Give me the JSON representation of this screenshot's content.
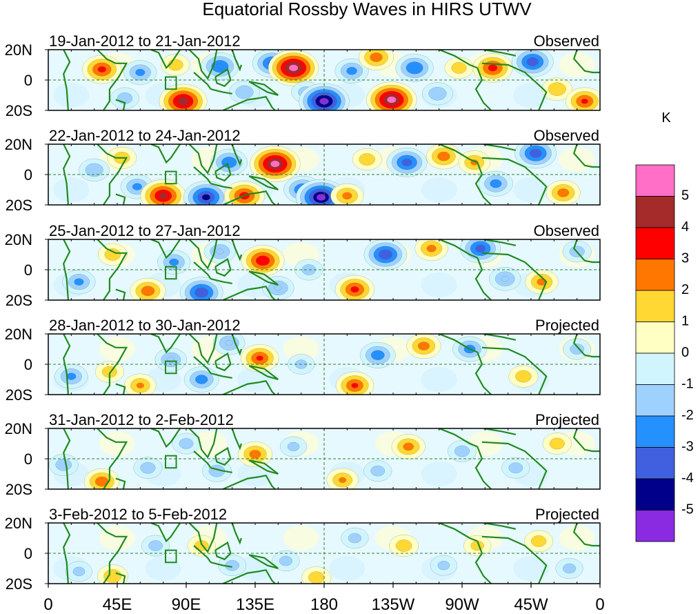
{
  "chart_data": {
    "type": "heatmap",
    "title": "Equatorial Rossby Waves in HIRS UTWV",
    "units_label": "K",
    "x_ticks": [
      "0",
      "45E",
      "90E",
      "135E",
      "180",
      "135W",
      "90W",
      "45W",
      "0"
    ],
    "x_tick_lons": [
      0,
      45,
      90,
      135,
      180,
      225,
      270,
      315,
      360
    ],
    "y_ticks": [
      "20N",
      "0",
      "20S"
    ],
    "y_tick_lats": [
      20,
      0,
      -20
    ],
    "xlim": [
      0,
      360
    ],
    "ylim": [
      -20,
      20
    ],
    "colorbar": {
      "labels": [
        "5",
        "4",
        "3",
        "2",
        "1",
        "0",
        "-1",
        "-2",
        "-3",
        "-4",
        "-5"
      ],
      "levels": [
        5,
        4,
        3,
        2,
        1,
        0,
        -1,
        -2,
        -3,
        -4,
        -5
      ],
      "colors": [
        "#ff6ec7",
        "#a52a2a",
        "#ff0000",
        "#ff7700",
        "#ffd833",
        "#ffffc4",
        "#d0f5ff",
        "#9fd1ff",
        "#2590ff",
        "#4060e0",
        "#00008b",
        "#8a2be2"
      ]
    },
    "panels": [
      {
        "date_range": "19-Jan-2012 to 21-Jan-2012",
        "kind": "Observed",
        "anomalies": [
          {
            "lon": 35,
            "lat": 7,
            "value": 3.2
          },
          {
            "lon": 60,
            "lat": 5,
            "value": -2.2
          },
          {
            "lon": 50,
            "lat": -12,
            "value": -1.5
          },
          {
            "lon": 83,
            "lat": 10,
            "value": 1.5
          },
          {
            "lon": 88,
            "lat": -14,
            "value": 4.6
          },
          {
            "lon": 112,
            "lat": 9,
            "value": -3.0
          },
          {
            "lon": 128,
            "lat": -8,
            "value": -1.8
          },
          {
            "lon": 146,
            "lat": 11,
            "value": -3.2
          },
          {
            "lon": 160,
            "lat": 8,
            "value": 5.5
          },
          {
            "lon": 168,
            "lat": -8,
            "value": -1.5
          },
          {
            "lon": 180,
            "lat": -14,
            "value": -5.5
          },
          {
            "lon": 198,
            "lat": 6,
            "value": -2.3
          },
          {
            "lon": 214,
            "lat": 15,
            "value": 2.5
          },
          {
            "lon": 224,
            "lat": -13,
            "value": 5.2
          },
          {
            "lon": 239,
            "lat": 8,
            "value": -3.0
          },
          {
            "lon": 254,
            "lat": -9,
            "value": -1.8
          },
          {
            "lon": 268,
            "lat": 8,
            "value": 1.5
          },
          {
            "lon": 290,
            "lat": 8,
            "value": 3.3
          },
          {
            "lon": 316,
            "lat": 12,
            "value": -3.6
          },
          {
            "lon": 332,
            "lat": -6,
            "value": 1.8
          },
          {
            "lon": 350,
            "lat": -14,
            "value": 3.0
          }
        ]
      },
      {
        "date_range": "22-Jan-2012 to 24-Jan-2012",
        "kind": "Observed",
        "anomalies": [
          {
            "lon": 30,
            "lat": 3,
            "value": -1.8
          },
          {
            "lon": 48,
            "lat": 11,
            "value": 1.6
          },
          {
            "lon": 58,
            "lat": -8,
            "value": -2.2
          },
          {
            "lon": 75,
            "lat": -14,
            "value": 4.2
          },
          {
            "lon": 103,
            "lat": -15,
            "value": -4.2
          },
          {
            "lon": 118,
            "lat": 8,
            "value": -2.8
          },
          {
            "lon": 128,
            "lat": -14,
            "value": 3.4
          },
          {
            "lon": 148,
            "lat": 7,
            "value": 5.2
          },
          {
            "lon": 166,
            "lat": -10,
            "value": -3.0
          },
          {
            "lon": 178,
            "lat": -15,
            "value": -5.2
          },
          {
            "lon": 195,
            "lat": -14,
            "value": 2.2
          },
          {
            "lon": 208,
            "lat": 10,
            "value": 1.6
          },
          {
            "lon": 234,
            "lat": 8,
            "value": -3.4
          },
          {
            "lon": 258,
            "lat": 12,
            "value": 2.5
          },
          {
            "lon": 278,
            "lat": 8,
            "value": 2.0
          },
          {
            "lon": 292,
            "lat": -6,
            "value": -2.4
          },
          {
            "lon": 318,
            "lat": 14,
            "value": -3.6
          },
          {
            "lon": 336,
            "lat": -12,
            "value": 2.4
          }
        ]
      },
      {
        "date_range": "25-Jan-2012 to 27-Jan-2012",
        "kind": "Observed",
        "anomalies": [
          {
            "lon": 20,
            "lat": -8,
            "value": -2.2
          },
          {
            "lon": 42,
            "lat": 10,
            "value": 1.6
          },
          {
            "lon": 65,
            "lat": -14,
            "value": 2.6
          },
          {
            "lon": 82,
            "lat": 5,
            "value": -2.2
          },
          {
            "lon": 100,
            "lat": -15,
            "value": -3.8
          },
          {
            "lon": 112,
            "lat": 12,
            "value": -2.0
          },
          {
            "lon": 140,
            "lat": 6,
            "value": 3.8
          },
          {
            "lon": 150,
            "lat": -12,
            "value": -2.0
          },
          {
            "lon": 170,
            "lat": 0,
            "value": -1.4
          },
          {
            "lon": 200,
            "lat": -13,
            "value": 3.2
          },
          {
            "lon": 220,
            "lat": 10,
            "value": -3.8
          },
          {
            "lon": 250,
            "lat": 14,
            "value": 2.2
          },
          {
            "lon": 282,
            "lat": 14,
            "value": -3.4
          },
          {
            "lon": 298,
            "lat": -6,
            "value": -2.0
          },
          {
            "lon": 322,
            "lat": -8,
            "value": 2.2
          },
          {
            "lon": 345,
            "lat": 12,
            "value": -1.5
          }
        ]
      },
      {
        "date_range": "28-Jan-2012 to 30-Jan-2012",
        "kind": "Projected",
        "anomalies": [
          {
            "lon": 15,
            "lat": -8,
            "value": -2.2
          },
          {
            "lon": 40,
            "lat": -5,
            "value": 1.5
          },
          {
            "lon": 60,
            "lat": -14,
            "value": 2.0
          },
          {
            "lon": 80,
            "lat": 3,
            "value": -2.0
          },
          {
            "lon": 100,
            "lat": -10,
            "value": -2.5
          },
          {
            "lon": 138,
            "lat": 4,
            "value": 3.0
          },
          {
            "lon": 118,
            "lat": 14,
            "value": -2.0
          },
          {
            "lon": 165,
            "lat": 0,
            "value": -1.2
          },
          {
            "lon": 200,
            "lat": -14,
            "value": 3.0
          },
          {
            "lon": 215,
            "lat": 6,
            "value": -2.6
          },
          {
            "lon": 245,
            "lat": 12,
            "value": 2.4
          },
          {
            "lon": 275,
            "lat": 10,
            "value": -2.4
          },
          {
            "lon": 310,
            "lat": -8,
            "value": 1.6
          },
          {
            "lon": 345,
            "lat": 10,
            "value": -1.4
          }
        ]
      },
      {
        "date_range": "31-Jan-2012 to 2-Feb-2012",
        "kind": "Projected",
        "anomalies": [
          {
            "lon": 10,
            "lat": -4,
            "value": -1.6
          },
          {
            "lon": 35,
            "lat": -15,
            "value": 2.6
          },
          {
            "lon": 65,
            "lat": -6,
            "value": -1.5
          },
          {
            "lon": 90,
            "lat": 10,
            "value": -1.4
          },
          {
            "lon": 110,
            "lat": -8,
            "value": -1.6
          },
          {
            "lon": 135,
            "lat": 3,
            "value": 2.4
          },
          {
            "lon": 160,
            "lat": 8,
            "value": -1.2
          },
          {
            "lon": 192,
            "lat": -14,
            "value": 2.0
          },
          {
            "lon": 215,
            "lat": -8,
            "value": -1.4
          },
          {
            "lon": 235,
            "lat": 8,
            "value": 2.3
          },
          {
            "lon": 270,
            "lat": 5,
            "value": -1.5
          },
          {
            "lon": 305,
            "lat": -6,
            "value": -1.4
          },
          {
            "lon": 332,
            "lat": 10,
            "value": 1.5
          }
        ]
      },
      {
        "date_range": "3-Feb-2012 to 5-Feb-2012",
        "kind": "Projected",
        "anomalies": [
          {
            "lon": 20,
            "lat": -12,
            "value": -1.2
          },
          {
            "lon": 42,
            "lat": -15,
            "value": 1.8
          },
          {
            "lon": 70,
            "lat": 5,
            "value": -1.4
          },
          {
            "lon": 100,
            "lat": 5,
            "value": 1.4
          },
          {
            "lon": 120,
            "lat": -8,
            "value": -1.4
          },
          {
            "lon": 155,
            "lat": -5,
            "value": -1.3
          },
          {
            "lon": 175,
            "lat": -16,
            "value": 1.6
          },
          {
            "lon": 200,
            "lat": 10,
            "value": -1.3
          },
          {
            "lon": 232,
            "lat": 5,
            "value": 1.6
          },
          {
            "lon": 258,
            "lat": -8,
            "value": -1.2
          },
          {
            "lon": 280,
            "lat": 5,
            "value": 1.3
          },
          {
            "lon": 320,
            "lat": 8,
            "value": 1.5
          },
          {
            "lon": 340,
            "lat": -10,
            "value": -1.3
          }
        ]
      }
    ]
  }
}
